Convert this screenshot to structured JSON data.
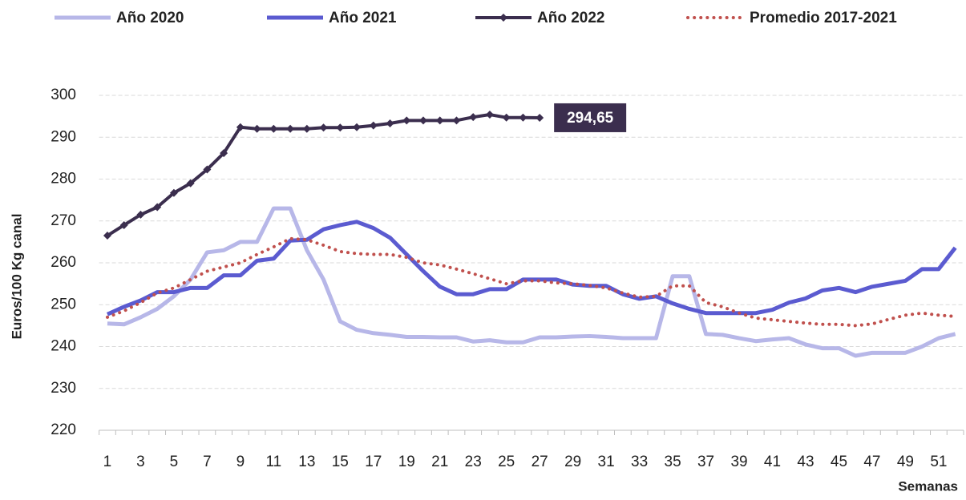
{
  "chart_data": {
    "type": "line",
    "y_label": "Euros/100 Kg canal",
    "x_label": "Semanas",
    "categories": [
      1,
      null,
      3,
      null,
      5,
      null,
      7,
      null,
      9,
      null,
      11,
      null,
      13,
      null,
      15,
      null,
      17,
      null,
      19,
      null,
      21,
      null,
      23,
      null,
      25,
      null,
      27,
      null,
      29,
      null,
      31,
      null,
      33,
      null,
      35,
      null,
      37,
      null,
      39,
      null,
      41,
      null,
      43,
      null,
      45,
      null,
      47,
      null,
      49,
      null,
      51,
      null
    ],
    "ylim": [
      220,
      300
    ],
    "yticks": [
      220,
      230,
      240,
      250,
      260,
      270,
      280,
      290,
      300
    ],
    "grid": true,
    "legend": "top",
    "series": [
      {
        "name": "Año 2020",
        "color": "#b7b7e8",
        "style": "solid",
        "values": [
          245.5,
          245.3,
          247,
          249,
          252,
          256,
          262.5,
          263,
          265,
          265,
          273,
          273,
          263,
          256,
          246,
          244,
          243.2,
          242.8,
          242.3,
          242.3,
          242.2,
          242.2,
          241.2,
          241.5,
          241,
          241,
          242.2,
          242.2,
          242.4,
          242.5,
          242.3,
          242,
          242,
          242,
          256.8,
          256.8,
          243,
          242.8,
          242,
          241.3,
          241.7,
          242,
          240.5,
          239.6,
          239.6,
          237.8,
          238.5,
          238.5,
          238.5,
          240,
          242,
          243
        ]
      },
      {
        "name": "Año 2021",
        "color": "#5b5bd0",
        "style": "solid",
        "values": [
          247.7,
          249.5,
          251,
          253,
          253,
          254,
          254,
          257,
          257,
          260.5,
          261,
          265.3,
          265.5,
          268,
          269,
          269.8,
          268.3,
          266,
          262,
          258,
          254.3,
          252.5,
          252.5,
          253.7,
          253.7,
          256,
          256,
          256,
          254.8,
          254.5,
          254.5,
          252.5,
          251.4,
          252,
          250.3,
          249,
          248,
          248,
          248,
          248,
          248.8,
          250.5,
          251.5,
          253.4,
          254,
          253,
          254.3,
          255,
          255.7,
          258.5,
          258.5,
          263.6
        ]
      },
      {
        "name": "Año 2022",
        "color": "#3b2e4e",
        "style": "marker",
        "values": [
          266.5,
          269,
          271.5,
          273.3,
          276.7,
          279,
          282.3,
          286.2,
          292.4,
          292,
          292,
          292,
          292,
          292.3,
          292.3,
          292.4,
          292.8,
          293.3,
          294,
          294,
          294,
          294,
          294.8,
          295.4,
          294.7,
          294.7,
          294.65,
          null,
          null,
          null,
          null,
          null,
          null,
          null,
          null,
          null,
          null,
          null,
          null,
          null,
          null,
          null,
          null,
          null,
          null,
          null,
          null,
          null,
          null,
          null,
          null,
          null
        ],
        "value_labels": [
          null,
          null,
          null,
          null,
          null,
          null,
          null,
          null,
          null,
          null,
          null,
          null,
          null,
          null,
          null,
          null,
          null,
          null,
          null,
          null,
          null,
          null,
          null,
          null,
          null,
          null,
          "294,65",
          null,
          null,
          null,
          null,
          null,
          null,
          null,
          null,
          null,
          null,
          null,
          null,
          null,
          null,
          null,
          null,
          null,
          null,
          null,
          null,
          null,
          null,
          null,
          null,
          null
        ]
      },
      {
        "name": "Promedio 2017-2021",
        "color": "#c0504d",
        "style": "dotted",
        "values": [
          247,
          248.5,
          250.5,
          252.8,
          254,
          256,
          258,
          259,
          260,
          262,
          263.8,
          265.8,
          265.5,
          264.2,
          262.7,
          262.2,
          262,
          262,
          261.3,
          260,
          259.5,
          258.5,
          257.4,
          256.2,
          255,
          255.7,
          255.7,
          255.2,
          255,
          254.6,
          254,
          252.8,
          251.8,
          252,
          254.5,
          254.5,
          250.5,
          249.5,
          248,
          246.8,
          246.4,
          246,
          245.6,
          245.3,
          245.3,
          245,
          245.4,
          246.5,
          247.5,
          248,
          247.5,
          247.2
        ]
      }
    ]
  }
}
